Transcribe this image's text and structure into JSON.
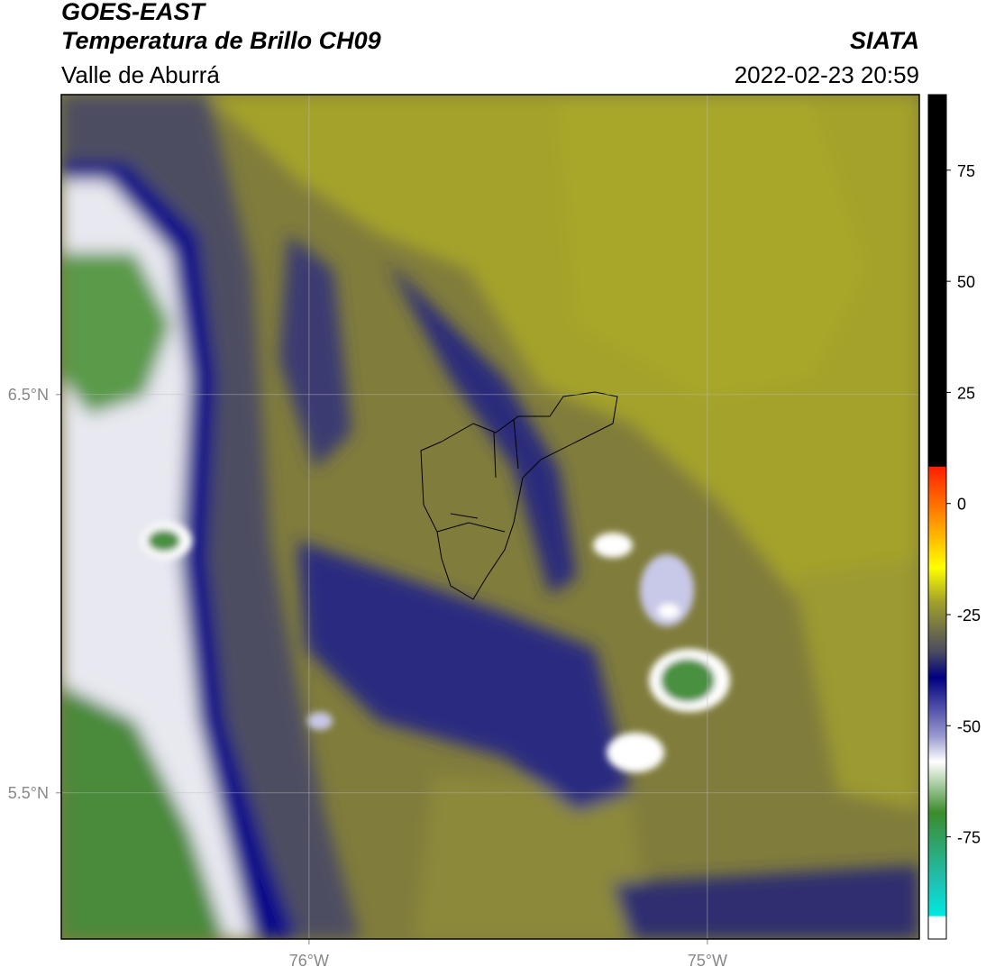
{
  "header": {
    "title": "GOES-EAST",
    "subtitle": "Temperatura de Brillo CH09",
    "region": "Valle de Aburrá",
    "source": "SIATA",
    "datetime": "2022-02-23 20:59"
  },
  "map": {
    "xlim": [
      -76.622,
      -74.468
    ],
    "ylim": [
      5.133,
      7.253
    ],
    "xticks": [
      {
        "value": -76,
        "label": "76°W"
      },
      {
        "value": -75,
        "label": "75°W"
      }
    ],
    "yticks": [
      {
        "value": 6.5,
        "label": "6.5°N"
      },
      {
        "value": 5.5,
        "label": "5.5°N"
      }
    ],
    "grid": true
  },
  "colorbar": {
    "lim": [
      -98,
      92
    ],
    "ticks": [
      75,
      50,
      25,
      0,
      -25,
      -50,
      -75
    ]
  }
}
